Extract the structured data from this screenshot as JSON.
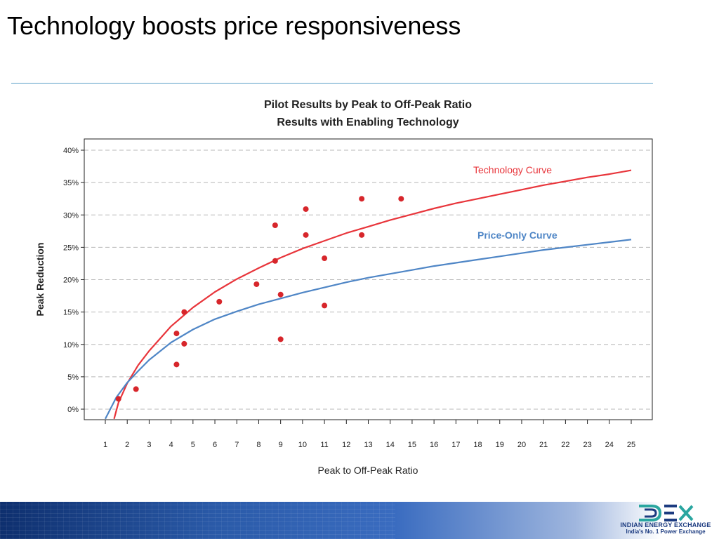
{
  "slide": {
    "title": "Technology boosts price responsiveness"
  },
  "footer": {
    "logo_name": "INDIAN ENERGY EXCHANGE",
    "logo_tagline": "India's No. 1 Power Exchange",
    "logo_icon": "iex-logo-icon"
  },
  "colors": {
    "technology_curve": "#e8353b",
    "price_only_curve": "#4f86c6",
    "points": "#d7262b",
    "grid": "#b8b8b8"
  },
  "chart_data": {
    "type": "scatter",
    "title": "Pilot Results by Peak to Off-Peak Ratio",
    "subtitle": "Results with Enabling Technology",
    "xlabel": "Peak to Off-Peak Ratio",
    "ylabel": "Peak Reduction",
    "xlim": [
      1,
      25
    ],
    "ylim": [
      -1.5,
      40
    ],
    "x_ticks": [
      "1",
      "2",
      "3",
      "4",
      "5",
      "6",
      "7",
      "8",
      "9",
      "10",
      "11",
      "12",
      "13",
      "14",
      "15",
      "16",
      "17",
      "18",
      "19",
      "20",
      "21",
      "22",
      "23",
      "24",
      "25"
    ],
    "y_ticks": [
      {
        "value": 0,
        "label": "0%"
      },
      {
        "value": 5,
        "label": "5%"
      },
      {
        "value": 10,
        "label": "10%"
      },
      {
        "value": 15,
        "label": "15%"
      },
      {
        "value": 20,
        "label": "20%"
      },
      {
        "value": 25,
        "label": "25%"
      },
      {
        "value": 30,
        "label": "30%"
      },
      {
        "value": 35,
        "label": "35%"
      },
      {
        "value": 40,
        "label": "40%"
      }
    ],
    "grid": "horizontal dashed",
    "points": [
      {
        "x": 1.6,
        "y": 1.6
      },
      {
        "x": 2.4,
        "y": 3.1
      },
      {
        "x": 4.25,
        "y": 6.9
      },
      {
        "x": 4.25,
        "y": 11.7
      },
      {
        "x": 4.6,
        "y": 10.1
      },
      {
        "x": 4.6,
        "y": 15.0
      },
      {
        "x": 6.2,
        "y": 16.6
      },
      {
        "x": 7.9,
        "y": 19.3
      },
      {
        "x": 8.75,
        "y": 22.9
      },
      {
        "x": 8.75,
        "y": 28.4
      },
      {
        "x": 9.0,
        "y": 17.7
      },
      {
        "x": 9.0,
        "y": 10.8
      },
      {
        "x": 10.15,
        "y": 30.9
      },
      {
        "x": 10.15,
        "y": 26.9
      },
      {
        "x": 11.0,
        "y": 23.3
      },
      {
        "x": 11.0,
        "y": 16.0
      },
      {
        "x": 12.7,
        "y": 32.5
      },
      {
        "x": 12.7,
        "y": 26.9
      },
      {
        "x": 14.5,
        "y": 32.5
      }
    ],
    "series": [
      {
        "name": "Technology Curve",
        "x": [
          1.4,
          1.6,
          2.0,
          2.5,
          3.0,
          4.0,
          5.0,
          6.0,
          7.0,
          8.0,
          9.0,
          10.0,
          11.0,
          12.0,
          13.0,
          14.0,
          15.0,
          16.0,
          17.0,
          18.0,
          19.0,
          20.0,
          21.0,
          22.0,
          23.0,
          24.0,
          25.0
        ],
        "y": [
          -1.5,
          1.0,
          4.0,
          6.8,
          9.0,
          12.8,
          15.7,
          18.1,
          20.1,
          21.8,
          23.4,
          24.8,
          26.0,
          27.2,
          28.2,
          29.2,
          30.1,
          31.0,
          31.8,
          32.5,
          33.2,
          33.9,
          34.6,
          35.2,
          35.8,
          36.3,
          36.9
        ]
      },
      {
        "name": "Price-Only Curve",
        "x": [
          1.0,
          1.5,
          2.0,
          2.5,
          3.0,
          4.0,
          5.0,
          6.0,
          7.0,
          8.0,
          9.0,
          10.0,
          11.0,
          12.0,
          13.0,
          14.0,
          15.0,
          16.0,
          17.0,
          18.0,
          19.0,
          20.0,
          21.0,
          22.0,
          23.0,
          24.0,
          25.0
        ],
        "y": [
          -1.5,
          1.8,
          4.1,
          5.9,
          7.6,
          10.3,
          12.3,
          13.9,
          15.1,
          16.2,
          17.1,
          18.0,
          18.8,
          19.6,
          20.3,
          20.9,
          21.5,
          22.1,
          22.6,
          23.1,
          23.6,
          24.1,
          24.6,
          25.0,
          25.4,
          25.8,
          26.2
        ]
      }
    ]
  }
}
